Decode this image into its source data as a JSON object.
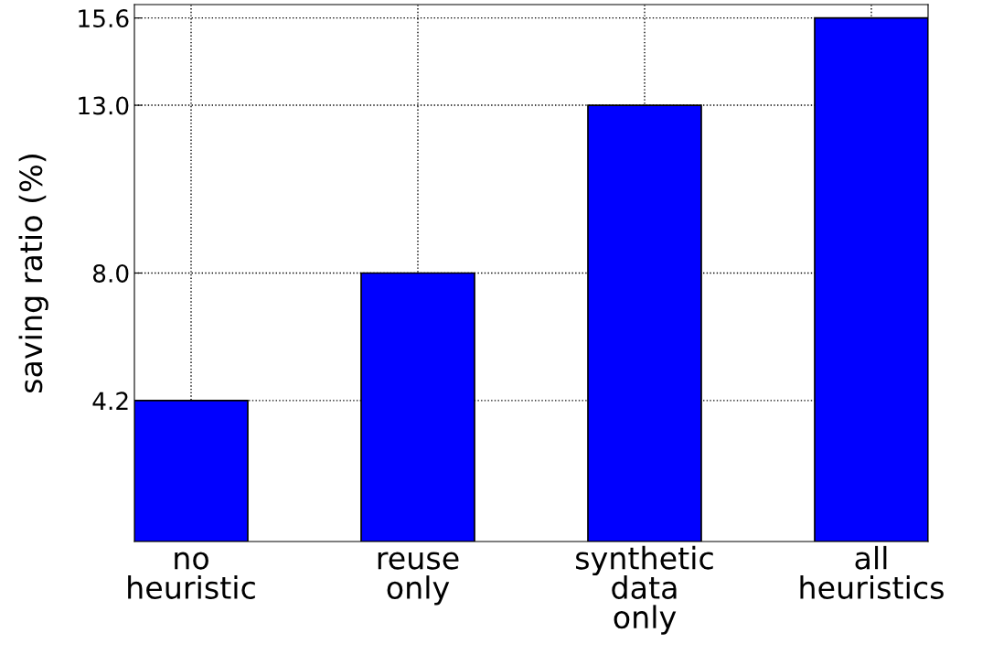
{
  "chart_data": {
    "type": "bar",
    "ylabel": "saving ratio (%)",
    "categories": [
      "no\nheuristic",
      "reuse\nonly",
      "synthetic\ndata\nonly",
      "all\nheuristics"
    ],
    "values": [
      4.2,
      8.0,
      13.0,
      15.6
    ],
    "color": "#0000ff",
    "ylim": [
      0,
      16
    ],
    "yticks": [
      4.2,
      {
        "value": 8,
        "label": "8.0"
      },
      {
        "value": 13,
        "label": "13.0"
      },
      15.6
    ],
    "grid": true
  }
}
